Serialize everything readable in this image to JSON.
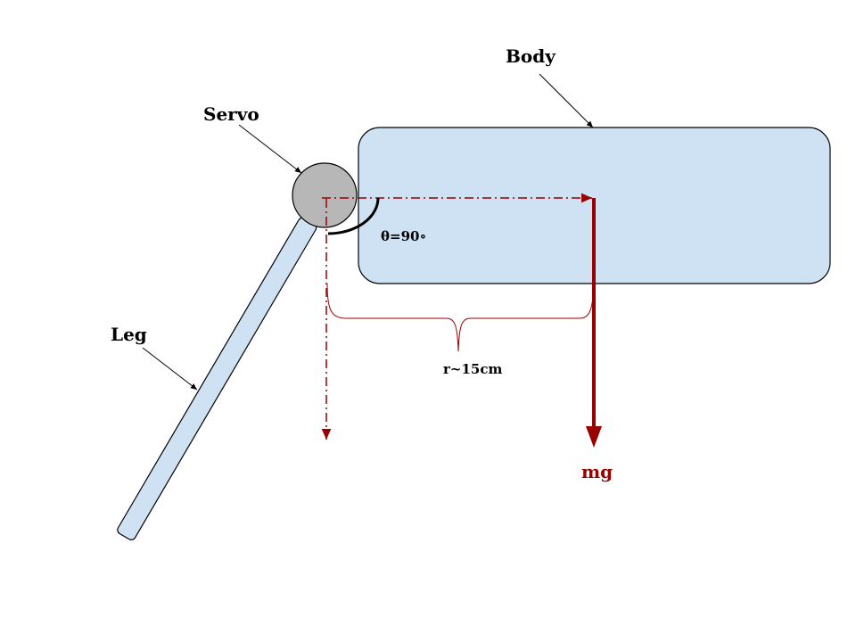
{
  "labels": {
    "body": "Body",
    "servo": "Servo",
    "leg": "Leg",
    "angle": "θ=90∘",
    "radius": "r~15cm",
    "force": "mg"
  },
  "colors": {
    "part_fill": "#cfe2f3",
    "servo_fill": "#b7b7b7",
    "outline": "#000000",
    "force": "#990000"
  }
}
